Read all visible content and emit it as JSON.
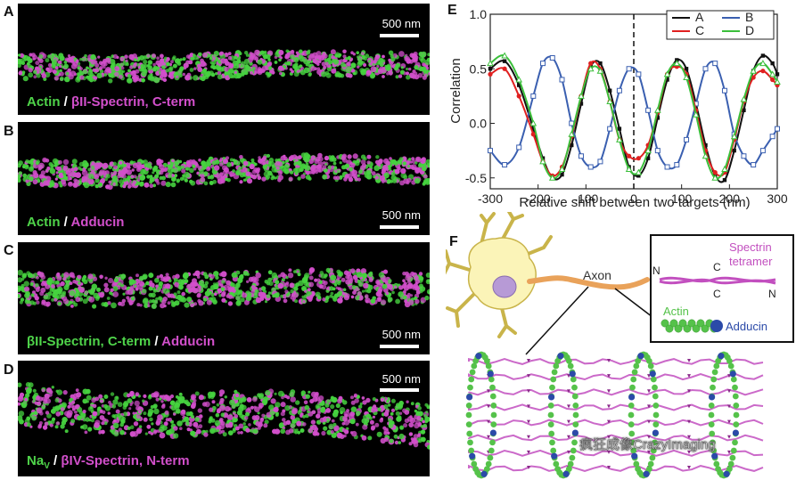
{
  "panels": {
    "A": {
      "letter": "A",
      "scale": "500 nm",
      "label_parts": [
        "Actin",
        " / ",
        "βII-Spectrin,  C-term"
      ]
    },
    "B": {
      "letter": "B",
      "scale": "500 nm",
      "label_parts": [
        "Actin",
        " / ",
        "Adducin"
      ]
    },
    "C": {
      "letter": "C",
      "scale": "500 nm",
      "label_parts": [
        "βII-Spectrin, C-term",
        " / ",
        "Adducin"
      ]
    },
    "D": {
      "letter": "D",
      "scale": "500 nm",
      "label_parts": [
        "Na",
        "V",
        " / ",
        "βIV-Spectrin, N-term"
      ]
    },
    "E": {
      "letter": "E"
    },
    "F": {
      "letter": "F"
    }
  },
  "chart_data": {
    "type": "line",
    "xlabel": "Relative shift between two targets (nm)",
    "ylabel": "Correlation",
    "xlim": [
      -300,
      300
    ],
    "ylim": [
      -0.6,
      1.0
    ],
    "xticks": [
      -300,
      -200,
      -100,
      0,
      100,
      200,
      300
    ],
    "yticks": [
      -0.5,
      0.0,
      0.5,
      1.0
    ],
    "ytick_labels": [
      "-0.5",
      "0.0",
      "0.5",
      "1.0"
    ],
    "legend_position": "top-right",
    "vline_x": 0,
    "series": [
      {
        "name": "A",
        "color": "#111111",
        "marker": "square-filled",
        "amp": 0.58,
        "offset": 0.02,
        "phase_deg": 0,
        "x": [
          -300,
          -270,
          -240,
          -210,
          -190,
          -170,
          -150,
          -130,
          -110,
          -90,
          -70,
          -50,
          -30,
          -10,
          10,
          30,
          50,
          70,
          90,
          110,
          130,
          150,
          170,
          190,
          210,
          230,
          250,
          270,
          290,
          300
        ],
        "y": [
          0.5,
          0.57,
          0.35,
          -0.05,
          -0.32,
          -0.5,
          -0.47,
          -0.2,
          0.18,
          0.52,
          0.55,
          0.3,
          -0.05,
          -0.4,
          -0.48,
          -0.32,
          0.05,
          0.4,
          0.58,
          0.5,
          0.18,
          -0.2,
          -0.48,
          -0.52,
          -0.25,
          0.12,
          0.48,
          0.62,
          0.55,
          0.45
        ]
      },
      {
        "name": "B",
        "color": "#3a5fb0",
        "marker": "square-open",
        "x": [
          -300,
          -270,
          -240,
          -210,
          -190,
          -170,
          -150,
          -130,
          -110,
          -90,
          -70,
          -50,
          -30,
          -10,
          10,
          30,
          50,
          70,
          90,
          110,
          130,
          150,
          170,
          190,
          210,
          230,
          250,
          270,
          290,
          300
        ],
        "y": [
          -0.25,
          -0.38,
          -0.22,
          0.25,
          0.55,
          0.6,
          0.4,
          0.0,
          -0.3,
          -0.4,
          -0.35,
          -0.05,
          0.3,
          0.5,
          0.45,
          0.12,
          -0.25,
          -0.4,
          -0.38,
          -0.15,
          0.18,
          0.5,
          0.55,
          0.3,
          -0.1,
          -0.3,
          -0.38,
          -0.25,
          -0.12,
          -0.05
        ]
      },
      {
        "name": "C",
        "color": "#e02020",
        "marker": "circle-filled",
        "x": [
          -300,
          -270,
          -240,
          -210,
          -190,
          -170,
          -150,
          -130,
          -110,
          -90,
          -70,
          -50,
          -30,
          -10,
          10,
          30,
          50,
          70,
          90,
          110,
          130,
          150,
          170,
          190,
          210,
          230,
          250,
          270,
          290,
          300
        ],
        "y": [
          0.45,
          0.5,
          0.25,
          -0.1,
          -0.35,
          -0.48,
          -0.4,
          -0.12,
          0.25,
          0.55,
          0.5,
          0.2,
          -0.15,
          -0.3,
          -0.32,
          -0.2,
          0.1,
          0.45,
          0.52,
          0.45,
          0.12,
          -0.25,
          -0.45,
          -0.45,
          -0.15,
          0.2,
          0.42,
          0.48,
          0.4,
          0.35
        ]
      },
      {
        "name": "D",
        "color": "#3bbf3b",
        "marker": "triangle-open",
        "x": [
          -300,
          -270,
          -240,
          -210,
          -190,
          -170,
          -150,
          -130,
          -110,
          -90,
          -70,
          -50,
          -30,
          -10,
          10,
          30,
          50,
          70,
          90,
          110,
          130,
          150,
          170,
          190,
          210,
          230,
          250,
          270,
          290,
          300
        ],
        "y": [
          0.55,
          0.62,
          0.4,
          0.0,
          -0.35,
          -0.5,
          -0.42,
          -0.1,
          0.25,
          0.5,
          0.48,
          0.2,
          -0.15,
          -0.42,
          -0.45,
          -0.25,
          0.12,
          0.45,
          0.55,
          0.42,
          0.08,
          -0.3,
          -0.5,
          -0.42,
          -0.12,
          0.22,
          0.48,
          0.55,
          0.45,
          0.38
        ]
      }
    ]
  },
  "diagram": {
    "axon_label": "Axon",
    "spectrin_label_1": "Spectrin",
    "spectrin_label_2": "tetramer",
    "n_left": "N",
    "c_top": "C",
    "c_bottom": "C",
    "n_right": "N",
    "actin_label": "Actin",
    "adducin_label": "Adducin",
    "watermark": "疯狂成像CrazyImaging",
    "colors": {
      "neuron_body": "#fbf4b8",
      "nucleus": "#b79ad6",
      "axon": "#e9a25a",
      "spectrin": "#c24fbf",
      "actin": "#55c24a",
      "adducin": "#2b4aa8"
    }
  }
}
